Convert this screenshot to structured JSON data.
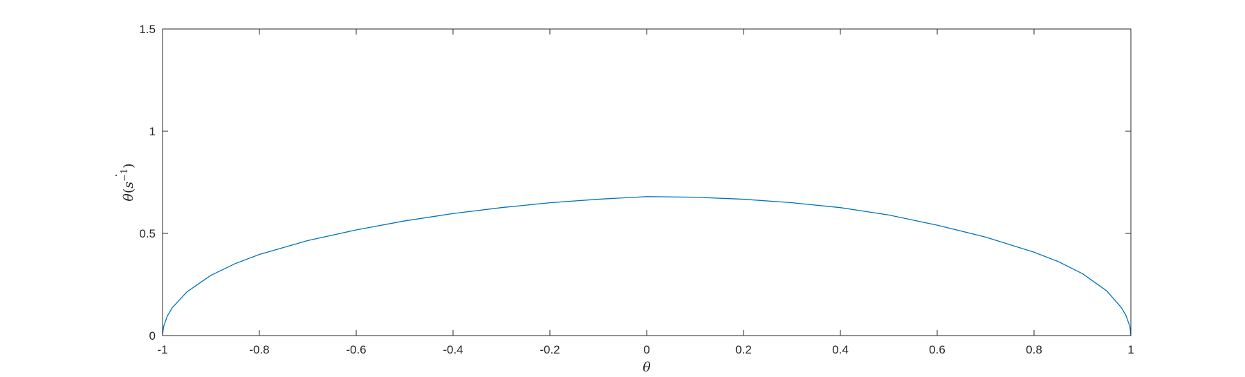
{
  "chart_data": {
    "type": "line",
    "title": "",
    "xlabel": "θ",
    "ylabel": {
      "symbol": "θ",
      "dot": "˙",
      "open": "(",
      "s": "s",
      "exp": "−1",
      "close": ")"
    },
    "xlim": [
      -1,
      1
    ],
    "ylim": [
      0,
      1.5
    ],
    "xticks": [
      "-1",
      "-0.8",
      "-0.6",
      "-0.4",
      "-0.2",
      "0",
      "0.2",
      "0.4",
      "0.6",
      "0.8",
      "1"
    ],
    "yticks": [
      "0",
      "0.5",
      "1",
      "1.5"
    ],
    "grid": false,
    "legend": "none",
    "series": [
      {
        "color": "#0072BD",
        "x": [
          -1.0,
          -0.998,
          -0.99,
          -0.98,
          -0.95,
          -0.9,
          -0.85,
          -0.8,
          -0.7,
          -0.6,
          -0.5,
          -0.4,
          -0.3,
          -0.2,
          -0.1,
          0.0,
          0.1,
          0.2,
          0.3,
          0.4,
          0.5,
          0.6,
          0.7,
          0.8,
          0.85,
          0.9,
          0.95,
          0.98,
          0.99,
          0.998,
          1.0
        ],
        "y": [
          0.0,
          0.043,
          0.096,
          0.136,
          0.213,
          0.295,
          0.352,
          0.397,
          0.465,
          0.517,
          0.561,
          0.597,
          0.626,
          0.65,
          0.667,
          0.68,
          0.677,
          0.667,
          0.65,
          0.626,
          0.59,
          0.54,
          0.482,
          0.408,
          0.362,
          0.303,
          0.219,
          0.138,
          0.098,
          0.044,
          0.0
        ]
      }
    ]
  }
}
